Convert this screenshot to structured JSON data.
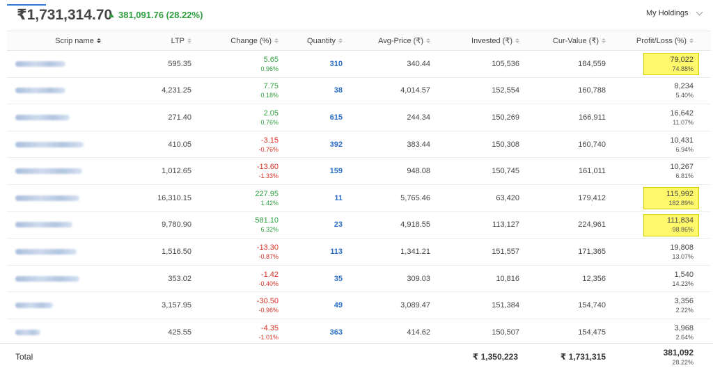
{
  "header": {
    "total_value": "₹1,731,314.70",
    "day_change": "381,091.76 (28.22%)",
    "dropdown_label": "My Holdings"
  },
  "columns": {
    "name": "Scrip name",
    "ltp": "LTP",
    "change": "Change (%)",
    "quantity": "Quantity",
    "avg_price": "Avg-Price (₹)",
    "invested": "Invested (₹)",
    "cur_value": "Cur-Value (₹)",
    "pl": "Profit/Loss (%)"
  },
  "rows": [
    {
      "ltp": "595.35",
      "change": "5.65",
      "change_pct": "0.96%",
      "dir": "pos",
      "qty": "310",
      "avg": "340.44",
      "invested": "105,536",
      "cur": "184,559",
      "pl": "79,022",
      "pl_pct": "74.88%",
      "highlight": true
    },
    {
      "ltp": "4,231.25",
      "change": "7.75",
      "change_pct": "0.18%",
      "dir": "pos",
      "qty": "38",
      "avg": "4,014.57",
      "invested": "152,554",
      "cur": "160,788",
      "pl": "8,234",
      "pl_pct": "5.40%",
      "highlight": false
    },
    {
      "ltp": "271.40",
      "change": "2.05",
      "change_pct": "0.76%",
      "dir": "pos",
      "qty": "615",
      "avg": "244.34",
      "invested": "150,269",
      "cur": "166,911",
      "pl": "16,642",
      "pl_pct": "11.07%",
      "highlight": false
    },
    {
      "ltp": "410.05",
      "change": "-3.15",
      "change_pct": "-0.76%",
      "dir": "neg",
      "qty": "392",
      "avg": "383.44",
      "invested": "150,308",
      "cur": "160,740",
      "pl": "10,431",
      "pl_pct": "6.94%",
      "highlight": false
    },
    {
      "ltp": "1,012.65",
      "change": "-13.60",
      "change_pct": "-1.33%",
      "dir": "neg",
      "qty": "159",
      "avg": "948.08",
      "invested": "150,745",
      "cur": "161,011",
      "pl": "10,267",
      "pl_pct": "6.81%",
      "highlight": false
    },
    {
      "ltp": "16,310.15",
      "change": "227.95",
      "change_pct": "1.42%",
      "dir": "pos",
      "qty": "11",
      "avg": "5,765.46",
      "invested": "63,420",
      "cur": "179,412",
      "pl": "115,992",
      "pl_pct": "182.89%",
      "highlight": true
    },
    {
      "ltp": "9,780.90",
      "change": "581.10",
      "change_pct": "6.32%",
      "dir": "pos",
      "qty": "23",
      "avg": "4,918.55",
      "invested": "113,127",
      "cur": "224,961",
      "pl": "111,834",
      "pl_pct": "98.86%",
      "highlight": true
    },
    {
      "ltp": "1,516.50",
      "change": "-13.30",
      "change_pct": "-0.87%",
      "dir": "neg",
      "qty": "113",
      "avg": "1,341.21",
      "invested": "151,557",
      "cur": "171,365",
      "pl": "19,808",
      "pl_pct": "13.07%",
      "highlight": false
    },
    {
      "ltp": "353.02",
      "change": "-1.42",
      "change_pct": "-0.40%",
      "dir": "neg",
      "qty": "35",
      "avg": "309.03",
      "invested": "10,816",
      "cur": "12,356",
      "pl": "1,540",
      "pl_pct": "14.23%",
      "highlight": false
    },
    {
      "ltp": "3,157.95",
      "change": "-30.50",
      "change_pct": "-0.96%",
      "dir": "neg",
      "qty": "49",
      "avg": "3,089.47",
      "invested": "151,384",
      "cur": "154,740",
      "pl": "3,356",
      "pl_pct": "2.22%",
      "highlight": false
    },
    {
      "ltp": "425.55",
      "change": "-4.35",
      "change_pct": "-1.01%",
      "dir": "neg",
      "qty": "363",
      "avg": "414.62",
      "invested": "150,507",
      "cur": "154,475",
      "pl": "3,968",
      "pl_pct": "2.64%",
      "highlight": false
    }
  ],
  "total": {
    "label": "Total",
    "invested": "₹ 1,350,223",
    "cur_value": "₹ 1,731,315",
    "pl": "381,092",
    "pl_pct": "28.22%"
  },
  "colors": {
    "positive": "#2e9e3e",
    "negative": "#d93025",
    "quantity": "#2a6fc9",
    "highlight": "#fff86a"
  }
}
